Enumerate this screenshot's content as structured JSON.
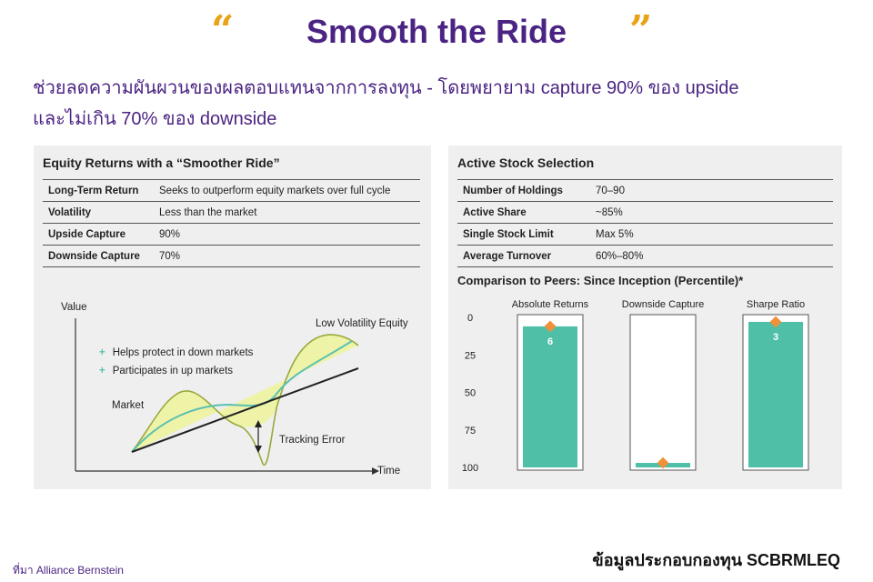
{
  "header": {
    "open_quote": "“",
    "close_quote": "”",
    "title": "Smooth the Ride",
    "subtitle_line1": "ช่วยลดความผันผวนของผลตอบแทนจากการลงทุน - โดยพยายาม capture 90% ของ upside",
    "subtitle_line2": "และไม่เกิน 70% ของ downside"
  },
  "left_panel": {
    "title": "Equity Returns with a “Smoother Ride”",
    "rows": [
      {
        "key": "Long-Term Return",
        "value": "Seeks to outperform equity markets over full cycle"
      },
      {
        "key": "Volatility",
        "value": "Less than the market"
      },
      {
        "key": "Upside Capture",
        "value": "90%"
      },
      {
        "key": "Downside Capture",
        "value": "70%"
      }
    ],
    "diagram": {
      "y_label": "Value",
      "x_label": "Time",
      "low_vol_label": "Low Volatility Equity",
      "market_label": "Market",
      "tracking_label": "Tracking Error",
      "legend": [
        "Helps protect in down markets",
        "Participates in up markets"
      ],
      "legend_symbol": "+"
    }
  },
  "right_panel": {
    "title": "Active Stock Selection",
    "rows": [
      {
        "key": "Number of Holdings",
        "value": "70–90"
      },
      {
        "key": "Active Share",
        "value": "~85%"
      },
      {
        "key": "Single Stock Limit",
        "value": "Max 5%"
      },
      {
        "key": "Average Turnover",
        "value": "60%–80%"
      }
    ],
    "comparison_title": "Comparison to Peers: Since Inception (Percentile)*"
  },
  "chart_data": {
    "type": "bar",
    "title": "Comparison to Peers: Since Inception (Percentile)*",
    "categories": [
      "Absolute Returns",
      "Downside Capture",
      "Sharpe Ratio"
    ],
    "values": [
      6,
      97,
      3
    ],
    "ylim": [
      0,
      100
    ],
    "y_ticks": [
      0,
      25,
      50,
      75,
      100
    ],
    "y_inverted": true,
    "bar_color": "#4fbfa8",
    "marker_color": "#f0913a"
  },
  "footer": {
    "source": "ที่มา Alliance Bernstein",
    "fund": "ข้อมูลประกอบกองทุน SCBRMLEQ"
  },
  "colors": {
    "title": "#4b2483",
    "quote": "#e8a317",
    "panel_bg": "#efefef",
    "teal": "#4fbfa8",
    "orange": "#f0913a",
    "yellow_fill": "#eef3a8"
  }
}
